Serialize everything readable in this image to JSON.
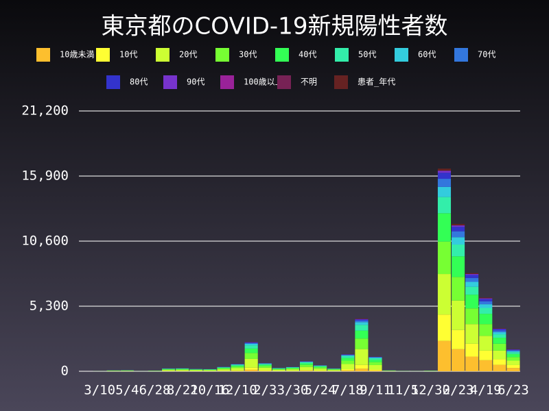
{
  "chart_data": {
    "type": "stacked-bar",
    "title": "東京都のCOVID-19新規陽性者数",
    "categories": [
      null,
      "3/10",
      null,
      "5/4",
      null,
      "6/28",
      null,
      "8/22",
      null,
      "10/16",
      null,
      "12/10",
      null,
      "2/3",
      null,
      "3/30",
      null,
      "5/24",
      null,
      "7/18",
      null,
      "9/11",
      null,
      "11/5",
      null,
      "12/30",
      null,
      "2/23",
      null,
      "4/19",
      null,
      "6/23"
    ],
    "series": [
      {
        "name": "10歳未満",
        "color": "#fdbf2e",
        "values": [
          0,
          0,
          4,
          4,
          0,
          3,
          12,
          12,
          10,
          9,
          18,
          30,
          120,
          34,
          14,
          18,
          42,
          25,
          12,
          70,
          215,
          60,
          4,
          2,
          1,
          3,
          2475,
          1800,
          1200,
          900,
          525,
          270
        ]
      },
      {
        "name": "10代",
        "color": "#ffff33",
        "values": [
          0,
          1,
          6,
          6,
          1,
          4,
          17,
          18,
          14,
          13,
          26,
          42,
          168,
          48,
          20,
          25,
          58,
          35,
          17,
          98,
          301,
          84,
          6,
          2,
          1,
          4,
          2145,
          1560,
          1040,
          780,
          455,
          234
        ]
      },
      {
        "name": "20代",
        "color": "#ccff33",
        "values": [
          0,
          3,
          24,
          27,
          3,
          18,
          72,
          75,
          60,
          54,
          111,
          180,
          720,
          204,
          84,
          108,
          249,
          150,
          72,
          420,
          1290,
          360,
          24,
          9,
          6,
          18,
          3300,
          2400,
          1600,
          1200,
          700,
          360
        ]
      },
      {
        "name": "30代",
        "color": "#77ff33",
        "values": [
          0,
          2,
          16,
          18,
          2,
          12,
          48,
          50,
          40,
          36,
          74,
          120,
          480,
          136,
          56,
          72,
          166,
          100,
          48,
          280,
          860,
          240,
          16,
          6,
          4,
          12,
          2640,
          1920,
          1280,
          960,
          560,
          288
        ]
      },
      {
        "name": "40代",
        "color": "#33ff55",
        "values": [
          0,
          2,
          12,
          14,
          2,
          9,
          36,
          38,
          30,
          27,
          56,
          90,
          360,
          102,
          42,
          54,
          125,
          75,
          36,
          210,
          645,
          180,
          12,
          5,
          3,
          9,
          2310,
          1680,
          1120,
          840,
          490,
          252
        ]
      },
      {
        "name": "50代",
        "color": "#33eeaa",
        "values": [
          0,
          1,
          9,
          10,
          1,
          7,
          26,
          28,
          22,
          20,
          41,
          66,
          264,
          75,
          31,
          40,
          91,
          55,
          26,
          154,
          473,
          132,
          9,
          3,
          2,
          7,
          1320,
          960,
          640,
          480,
          280,
          144
        ]
      },
      {
        "name": "60代",
        "color": "#33ccdd",
        "values": [
          0,
          1,
          4,
          5,
          1,
          3,
          12,
          12,
          10,
          9,
          18,
          30,
          120,
          34,
          14,
          18,
          42,
          25,
          12,
          70,
          215,
          60,
          4,
          2,
          1,
          3,
          825,
          600,
          400,
          300,
          175,
          90
        ]
      },
      {
        "name": "70代",
        "color": "#3377dd",
        "values": [
          0,
          0,
          2,
          3,
          0,
          2,
          7,
          8,
          6,
          5,
          11,
          18,
          72,
          20,
          8,
          11,
          25,
          15,
          7,
          42,
          129,
          36,
          2,
          1,
          1,
          2,
          660,
          480,
          320,
          240,
          140,
          72
        ]
      },
      {
        "name": "80代",
        "color": "#3333cc",
        "values": [
          0,
          0,
          2,
          2,
          0,
          1,
          5,
          5,
          4,
          4,
          7,
          12,
          48,
          14,
          6,
          7,
          17,
          10,
          5,
          28,
          86,
          24,
          2,
          0,
          0,
          1,
          495,
          360,
          240,
          180,
          105,
          54
        ]
      },
      {
        "name": "90代",
        "color": "#7733cc",
        "values": [
          0,
          0,
          1,
          1,
          0,
          1,
          2,
          3,
          2,
          2,
          4,
          6,
          24,
          7,
          3,
          4,
          8,
          5,
          2,
          14,
          43,
          12,
          1,
          0,
          0,
          0,
          165,
          120,
          80,
          60,
          35,
          18
        ]
      },
      {
        "name": "100歳以上",
        "color": "#992299",
        "values": [
          0,
          0,
          0,
          0,
          0,
          0,
          0,
          0,
          0,
          0,
          0,
          0,
          1,
          0,
          0,
          0,
          0,
          0,
          0,
          0,
          0,
          0,
          0,
          0,
          0,
          0,
          1,
          0,
          0,
          0,
          0,
          0
        ]
      },
      {
        "name": "不明",
        "color": "#772255",
        "values": [
          0,
          0,
          0,
          0,
          0,
          0,
          0,
          0,
          0,
          0,
          0,
          0,
          0,
          0,
          0,
          0,
          0,
          0,
          0,
          0,
          0,
          0,
          0,
          0,
          0,
          0,
          0,
          0,
          0,
          0,
          0,
          0
        ]
      },
      {
        "name": "患者_年代",
        "color": "#662222",
        "values": [
          0,
          0,
          1,
          1,
          0,
          1,
          2,
          3,
          2,
          2,
          4,
          6,
          24,
          7,
          3,
          4,
          8,
          5,
          2,
          14,
          43,
          12,
          1,
          0,
          0,
          0,
          165,
          120,
          80,
          60,
          35,
          18
        ]
      }
    ],
    "ylim": [
      0,
      21200
    ],
    "yticks": [
      0,
      {
        "value": 5300,
        "label": "5,300"
      },
      {
        "value": 10600,
        "label": "10,600"
      },
      {
        "value": 15900,
        "label": "15,900"
      },
      {
        "value": 21200,
        "label": "21,200"
      }
    ],
    "grid": true
  }
}
